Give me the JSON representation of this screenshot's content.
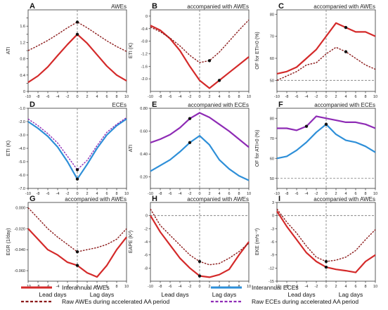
{
  "legend": {
    "items": [
      {
        "label": "Interannual AWEs",
        "color": "#d42a2a",
        "dash": false
      },
      {
        "label": "Interannual ECEs",
        "color": "#2e8fd8",
        "dash": false
      },
      {
        "label": "Raw AWEs during accelerated AA period",
        "color": "#8b1a1a",
        "dash": true
      },
      {
        "label": "Raw ECEs during accelerated AA period",
        "color": "#8e2bb5",
        "dash": true
      }
    ]
  },
  "xlabels": {
    "lead": "Lead days",
    "lag": "Lag days"
  },
  "chart_data": [
    {
      "panel": "A",
      "title": "AWEs",
      "ylabel": "ATI",
      "type": "line",
      "ylim": [
        0,
        2.0
      ],
      "yticks": [
        0,
        0.2,
        0.4,
        0.6,
        0.8,
        1.0,
        1.2,
        1.4,
        1.6,
        1.8
      ],
      "ytickLabels": [
        "0",
        "",
        "0.4",
        "",
        "0.8",
        "",
        "1.2",
        "",
        "1.6",
        ""
      ],
      "hline": null,
      "x": [
        -10,
        -8,
        -6,
        -4,
        -2,
        0,
        2,
        4,
        6,
        8,
        10
      ],
      "series": [
        {
          "values": [
            0.22,
            0.38,
            0.6,
            0.88,
            1.15,
            1.4,
            1.18,
            0.9,
            0.62,
            0.4,
            0.26
          ],
          "color": "#d42a2a",
          "dash": false,
          "width": 2.2,
          "marker": 0
        },
        {
          "values": [
            1.0,
            1.12,
            1.25,
            1.4,
            1.56,
            1.7,
            1.56,
            1.4,
            1.24,
            1.1,
            0.98
          ],
          "color": "#8b1a1a",
          "dash": true,
          "width": 1.4,
          "marker": 0
        }
      ]
    },
    {
      "panel": "B",
      "title": "accompanied with AWEs",
      "ylabel": "ETI (K)",
      "type": "line",
      "ylim": [
        -2.4,
        0.2
      ],
      "yticks": [
        0,
        -0.4,
        -0.8,
        -1.2,
        -1.6,
        -2.0
      ],
      "ytickLabels": [
        "0",
        "-0.4",
        "-0.8",
        "-1.2",
        "-1.6",
        "-2.0"
      ],
      "hline": null,
      "x": [
        -10,
        -8,
        -6,
        -4,
        -2,
        0,
        2,
        4,
        6,
        8,
        10
      ],
      "series": [
        {
          "values": [
            -0.3,
            -0.45,
            -0.72,
            -1.1,
            -1.6,
            -2.05,
            -2.3,
            -2.05,
            -1.8,
            -1.55,
            -1.3
          ],
          "color": "#d42a2a",
          "dash": false,
          "width": 2.2,
          "marker": 2
        },
        {
          "values": [
            -0.35,
            -0.5,
            -0.7,
            -0.95,
            -1.25,
            -1.48,
            -1.42,
            -1.15,
            -0.8,
            -0.45,
            -0.12
          ],
          "color": "#8b1a1a",
          "dash": true,
          "width": 1.4,
          "marker": 1
        }
      ]
    },
    {
      "panel": "C",
      "title": "accompanied with AWEs",
      "ylabel": "OF for ETI<0 (%)",
      "type": "line",
      "ylim": [
        45,
        82
      ],
      "yticks": [
        50,
        60,
        70,
        80
      ],
      "ytickLabels": [
        "50",
        "60",
        "70",
        "80"
      ],
      "hline": 50,
      "x": [
        -10,
        -8,
        -6,
        -4,
        -2,
        0,
        2,
        4,
        6,
        8,
        10
      ],
      "series": [
        {
          "values": [
            53,
            54,
            56,
            60,
            64,
            70,
            76,
            74,
            72,
            72,
            70
          ],
          "color": "#d42a2a",
          "dash": false,
          "width": 2.2,
          "marker": 2
        },
        {
          "values": [
            50,
            52,
            54,
            57,
            58,
            62,
            65,
            63,
            60,
            57,
            55
          ],
          "color": "#8b1a1a",
          "dash": true,
          "width": 1.4,
          "marker": 2
        }
      ]
    },
    {
      "panel": "D",
      "title": "ECEs",
      "ylabel": "ETI (K)",
      "type": "line",
      "ylim": [
        -7.0,
        -1.0
      ],
      "yticks": [
        -1.0,
        -2.0,
        -3.0,
        -4.0,
        -5.0,
        -6.0,
        -7.0
      ],
      "ytickLabels": [
        "-1.0",
        "-2.0",
        "-3.0",
        "-4.0",
        "-5.0",
        "-6.0",
        "-7.0"
      ],
      "hline": null,
      "x": [
        -10,
        -8,
        -6,
        -4,
        -2,
        0,
        2,
        4,
        6,
        8,
        10
      ],
      "series": [
        {
          "values": [
            -2.0,
            -2.5,
            -3.1,
            -3.9,
            -5.0,
            -6.3,
            -5.2,
            -4.0,
            -3.0,
            -2.3,
            -1.8
          ],
          "color": "#2e8fd8",
          "dash": false,
          "width": 2.2,
          "marker": 0
        },
        {
          "values": [
            -1.8,
            -2.3,
            -2.9,
            -3.6,
            -4.6,
            -5.6,
            -4.9,
            -3.8,
            -2.8,
            -2.2,
            -1.7
          ],
          "color": "#8e2bb5",
          "dash": true,
          "width": 1.4,
          "marker": 0
        }
      ]
    },
    {
      "panel": "E",
      "title": "accompanied with ECEs",
      "ylabel": "ATI",
      "type": "line",
      "ylim": [
        0.1,
        0.8
      ],
      "yticks": [
        0.2,
        0.4,
        0.6,
        0.8
      ],
      "ytickLabels": [
        "0.20",
        "0.40",
        "0.60",
        "0.80"
      ],
      "hline": null,
      "x": [
        -10,
        -8,
        -6,
        -4,
        -2,
        0,
        2,
        4,
        6,
        8,
        10
      ],
      "series": [
        {
          "values": [
            0.25,
            0.3,
            0.35,
            0.42,
            0.5,
            0.56,
            0.48,
            0.35,
            0.27,
            0.21,
            0.17
          ],
          "color": "#2e8fd8",
          "dash": false,
          "width": 2.2,
          "marker": -1
        },
        {
          "values": [
            0.5,
            0.53,
            0.57,
            0.63,
            0.71,
            0.76,
            0.72,
            0.66,
            0.6,
            0.53,
            0.46
          ],
          "color": "#8e2bb5",
          "dash": false,
          "width": 2.2,
          "marker": -1
        }
      ]
    },
    {
      "panel": "F",
      "title": "accompanied with ECEs",
      "ylabel": "OF for ATI>0 (%)",
      "type": "line",
      "ylim": [
        45,
        85
      ],
      "yticks": [
        50,
        60,
        70,
        80
      ],
      "ytickLabels": [
        "50",
        "60",
        "70",
        "80"
      ],
      "hline": 50,
      "x": [
        -10,
        -8,
        -6,
        -4,
        -2,
        0,
        2,
        4,
        6,
        8,
        10
      ],
      "series": [
        {
          "values": [
            60,
            61,
            64,
            68,
            73,
            77,
            72,
            69,
            68,
            66,
            63
          ],
          "color": "#2e8fd8",
          "dash": false,
          "width": 2.2,
          "marker": 0
        },
        {
          "values": [
            75,
            75,
            74,
            76,
            81,
            80,
            79,
            78,
            78,
            77,
            75
          ],
          "color": "#8e2bb5",
          "dash": false,
          "width": 2.2,
          "marker": -2
        }
      ]
    },
    {
      "panel": "G",
      "title": "accompanied with AWEs",
      "ylabel": "EGR (1/day)",
      "type": "line",
      "ylim": [
        -0.07,
        0.005
      ],
      "yticks": [
        0,
        -0.02,
        -0.04,
        -0.06
      ],
      "ytickLabels": [
        "0.000",
        "-0.020",
        "-0.040",
        "-0.060"
      ],
      "hline": null,
      "x": [
        -10,
        -8,
        -6,
        -4,
        -2,
        0,
        2,
        4,
        6,
        8,
        10
      ],
      "series": [
        {
          "values": [
            -0.02,
            -0.03,
            -0.04,
            -0.045,
            -0.052,
            -0.055,
            -0.062,
            -0.066,
            -0.055,
            -0.04,
            -0.028
          ],
          "color": "#d42a2a",
          "dash": false,
          "width": 2.2,
          "marker": 0
        },
        {
          "values": [
            0.0,
            -0.01,
            -0.02,
            -0.028,
            -0.035,
            -0.042,
            -0.04,
            -0.038,
            -0.035,
            -0.03,
            -0.02
          ],
          "color": "#8b1a1a",
          "dash": true,
          "width": 1.4,
          "marker": 0
        }
      ]
    },
    {
      "panel": "H",
      "title": "accompanied with AWEs",
      "ylabel": "EAPE (K²)",
      "type": "line",
      "ylim": [
        -10,
        2
      ],
      "yticks": [
        0,
        -2,
        -4,
        -6,
        -8
      ],
      "ytickLabels": [
        "0",
        "-2",
        "-4",
        "-6",
        "-8"
      ],
      "hline": 0,
      "x": [
        -10,
        -8,
        -6,
        -4,
        -2,
        0,
        2,
        4,
        6,
        8,
        10
      ],
      "series": [
        {
          "values": [
            0,
            -2.5,
            -4.5,
            -6.5,
            -8,
            -9.2,
            -9.4,
            -9,
            -8.2,
            -6,
            -4
          ],
          "color": "#d42a2a",
          "dash": false,
          "width": 2.2,
          "marker": 0
        },
        {
          "values": [
            1,
            -1.5,
            -3,
            -4.5,
            -6,
            -7,
            -7.5,
            -7.3,
            -6.5,
            -5.5,
            -4.2
          ],
          "color": "#8b1a1a",
          "dash": true,
          "width": 1.4,
          "marker": 0
        }
      ]
    },
    {
      "panel": "I",
      "title": "accompanied with AWEs",
      "ylabel": "EKE (m²s⁻²)",
      "type": "line",
      "ylim": [
        -15,
        3
      ],
      "yticks": [
        3,
        0,
        -3,
        -6,
        -9,
        -12,
        -15
      ],
      "ytickLabels": [
        "3",
        "0",
        "-3",
        "-6",
        "-9",
        "-12",
        "-15"
      ],
      "hline": 0,
      "x": [
        -10,
        -8,
        -6,
        -4,
        -2,
        0,
        2,
        4,
        6,
        8,
        10
      ],
      "series": [
        {
          "values": [
            1,
            -2.5,
            -5.5,
            -8.5,
            -10.5,
            -11.8,
            -12.3,
            -12.6,
            -13,
            -10.5,
            -9
          ],
          "color": "#d42a2a",
          "dash": false,
          "width": 2.2,
          "marker": 0
        },
        {
          "values": [
            1.5,
            -1.5,
            -4,
            -7,
            -9.5,
            -10.5,
            -10.2,
            -9.5,
            -8,
            -5.5,
            -3.2
          ],
          "color": "#8b1a1a",
          "dash": true,
          "width": 1.4,
          "marker": 0
        }
      ]
    }
  ]
}
